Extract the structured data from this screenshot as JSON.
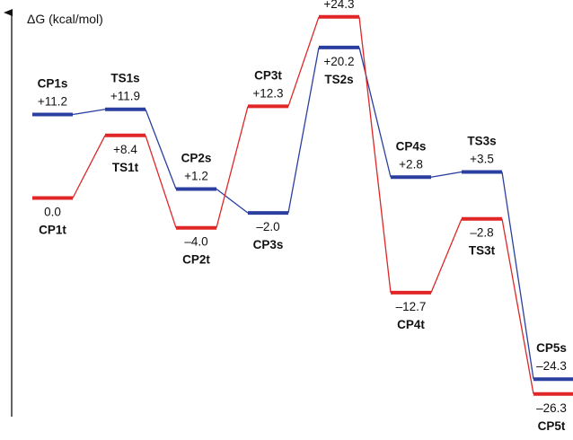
{
  "chart_data": {
    "type": "line",
    "ylabel": "ΔG (kcal/mol)",
    "grid": false,
    "legend": "none",
    "series": [
      {
        "color": "#2b3fa0",
        "points": [
          {
            "name": "CP1s",
            "value": 11.2,
            "value_label": "+11.2"
          },
          {
            "name": "TS1s",
            "value": 11.9,
            "value_label": "+11.9"
          },
          {
            "name": "CP2s",
            "value": 1.2,
            "value_label": "+1.2"
          },
          {
            "name": "CP3s",
            "value": -2.0,
            "value_label": "–2.0"
          },
          {
            "name": "TS2s",
            "value": 20.2,
            "value_label": "+20.2"
          },
          {
            "name": "CP4s",
            "value": 2.8,
            "value_label": "+2.8"
          },
          {
            "name": "TS3s",
            "value": 3.5,
            "value_label": "+3.5"
          },
          {
            "name": "CP5s",
            "value": -24.3,
            "value_label": "–24.3"
          }
        ]
      },
      {
        "color": "#e02626",
        "points": [
          {
            "name": "CP1t",
            "value": 0.0,
            "value_label": "0.0"
          },
          {
            "name": "TS1t",
            "value": 8.4,
            "value_label": "+8.4"
          },
          {
            "name": "CP2t",
            "value": -4.0,
            "value_label": "–4.0"
          },
          {
            "name": "CP3t",
            "value": 12.3,
            "value_label": "+12.3"
          },
          {
            "name": "TS2t",
            "value": 24.3,
            "value_label": "+24.3"
          },
          {
            "name": "CP4t",
            "value": -12.7,
            "value_label": "–12.7"
          },
          {
            "name": "TS3t",
            "value": -2.8,
            "value_label": "–2.8"
          },
          {
            "name": "CP5t",
            "value": -26.3,
            "value_label": "–26.3"
          }
        ]
      }
    ]
  }
}
